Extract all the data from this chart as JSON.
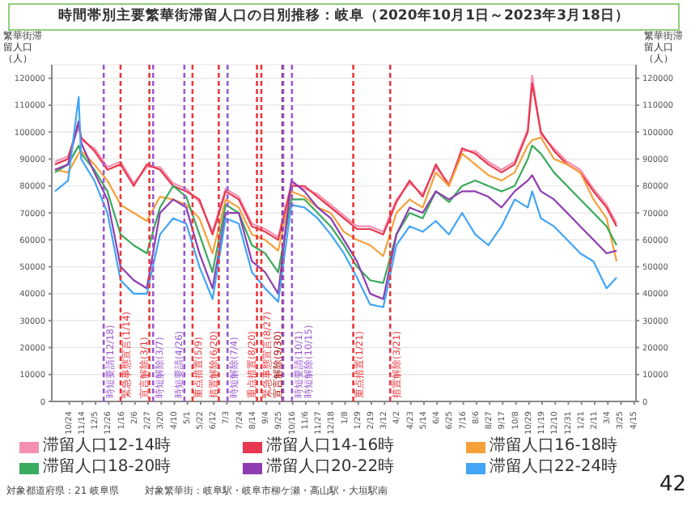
{
  "chart_data": {
    "type": "line",
    "title": "時間帯別主要繁華街滞留人口の日別推移：岐阜（2020年10月1日～2023年3月18日）",
    "ylabel": "繁華街滞留人口（人）",
    "y2label": "繁華街滞留人口（人）",
    "x": [
      "2020-10-01",
      "2020-10-22",
      "2020-11-08",
      "2020-11-12",
      "2020-12-03",
      "2020-12-24",
      "2021-01-14",
      "2021-02-04",
      "2021-02-25",
      "2021-03-18",
      "2021-04-08",
      "2021-04-29",
      "2021-05-20",
      "2021-06-10",
      "2021-07-01",
      "2021-07-22",
      "2021-08-12",
      "2021-09-02",
      "2021-09-23",
      "2021-10-14",
      "2021-11-04",
      "2021-11-25",
      "2021-12-16",
      "2022-01-06",
      "2022-01-27",
      "2022-02-17",
      "2022-03-10",
      "2022-03-31",
      "2022-04-21",
      "2022-05-12",
      "2022-06-02",
      "2022-06-23",
      "2022-07-14",
      "2022-08-04",
      "2022-08-25",
      "2022-09-15",
      "2022-10-06",
      "2022-10-27",
      "2022-11-03",
      "2022-11-17",
      "2022-12-08",
      "2022-12-29",
      "2023-01-19",
      "2023-02-09",
      "2023-03-02",
      "2023-03-18"
    ],
    "series": [
      {
        "name": "滞留人口12-14時",
        "color": "#f48fb1",
        "values": [
          89000,
          91000,
          102000,
          97000,
          94000,
          87000,
          89000,
          81000,
          87000,
          87000,
          81000,
          79000,
          74000,
          63000,
          79000,
          76000,
          66000,
          64000,
          61000,
          81000,
          79000,
          77000,
          73000,
          69000,
          65000,
          65000,
          63000,
          75000,
          81000,
          77000,
          87000,
          81000,
          93000,
          93000,
          89000,
          86000,
          89000,
          101000,
          121000,
          99000,
          94000,
          89000,
          86000,
          79000,
          73000,
          66000
        ]
      },
      {
        "name": "滞留人口14-16時",
        "color": "#e8384f",
        "values": [
          88000,
          90000,
          104000,
          98000,
          93000,
          86000,
          88000,
          80000,
          88000,
          86000,
          80000,
          78000,
          75000,
          62000,
          78000,
          75000,
          65000,
          63000,
          60000,
          80000,
          80000,
          76000,
          72000,
          68000,
          64000,
          64000,
          62000,
          74000,
          82000,
          76000,
          88000,
          80000,
          94000,
          92000,
          88000,
          85000,
          88000,
          100000,
          118000,
          100000,
          93000,
          88000,
          85000,
          78000,
          72000,
          65000
        ]
      },
      {
        "name": "滞留人口16-18時",
        "color": "#f5a03a",
        "values": [
          86000,
          85000,
          92000,
          93000,
          88000,
          82000,
          73000,
          70000,
          67000,
          76000,
          75000,
          73000,
          68000,
          55000,
          75000,
          72000,
          62000,
          60000,
          56000,
          78000,
          76000,
          72000,
          70000,
          63000,
          60000,
          58000,
          54000,
          70000,
          75000,
          72000,
          85000,
          80000,
          92000,
          88000,
          84000,
          82000,
          85000,
          95000,
          97000,
          98000,
          90000,
          88000,
          85000,
          75000,
          68000,
          52000
        ]
      },
      {
        "name": "滞留人口18-20時",
        "color": "#3aaa5c",
        "values": [
          85000,
          88000,
          95000,
          92000,
          86000,
          78000,
          62000,
          58000,
          55000,
          72000,
          80000,
          76000,
          62000,
          48000,
          73000,
          70000,
          58000,
          55000,
          48000,
          75000,
          75000,
          70000,
          65000,
          58000,
          50000,
          45000,
          44000,
          62000,
          70000,
          68000,
          78000,
          74000,
          80000,
          82000,
          80000,
          78000,
          80000,
          90000,
          95000,
          92000,
          85000,
          80000,
          75000,
          70000,
          65000,
          58000
        ]
      },
      {
        "name": "滞留人口20-22時",
        "color": "#8e3cb0",
        "values": [
          86000,
          88000,
          104000,
          96000,
          85000,
          75000,
          50000,
          45000,
          42000,
          70000,
          75000,
          72000,
          55000,
          42000,
          70000,
          70000,
          52000,
          48000,
          40000,
          82000,
          78000,
          72000,
          68000,
          60000,
          52000,
          40000,
          38000,
          62000,
          72000,
          70000,
          78000,
          75000,
          78000,
          78000,
          76000,
          72000,
          78000,
          82000,
          84000,
          78000,
          75000,
          70000,
          65000,
          60000,
          55000,
          56000
        ]
      },
      {
        "name": "滞留人口22-24時",
        "color": "#42a5f5",
        "values": [
          78000,
          82000,
          113000,
          90000,
          82000,
          70000,
          45000,
          40000,
          40000,
          62000,
          68000,
          66000,
          50000,
          38000,
          68000,
          66000,
          48000,
          42000,
          37000,
          73000,
          72000,
          68000,
          62000,
          55000,
          46000,
          36000,
          35000,
          58000,
          65000,
          63000,
          67000,
          62000,
          70000,
          62000,
          58000,
          65000,
          75000,
          72000,
          78000,
          68000,
          65000,
          60000,
          55000,
          52000,
          42000,
          46000
        ]
      }
    ],
    "xlim": [
      "2020-09-26",
      "2023-04-18"
    ],
    "xticks": [
      {
        "value": "2020-10-24",
        "label": "10/24"
      },
      {
        "value": "2020-11-14",
        "label": "11/14"
      },
      {
        "value": "2020-12-05",
        "label": "12/5"
      },
      {
        "value": "2020-12-26",
        "label": "12/26"
      },
      {
        "value": "2021-01-16",
        "label": "1/16"
      },
      {
        "value": "2021-02-06",
        "label": "2/6"
      },
      {
        "value": "2021-02-27",
        "label": "2/27"
      },
      {
        "value": "2021-03-20",
        "label": "3/20"
      },
      {
        "value": "2021-04-10",
        "label": "4/10"
      },
      {
        "value": "2021-05-01",
        "label": "5/1"
      },
      {
        "value": "2021-05-22",
        "label": "5/22"
      },
      {
        "value": "2021-06-12",
        "label": "6/12"
      },
      {
        "value": "2021-07-03",
        "label": "7/3"
      },
      {
        "value": "2021-07-24",
        "label": "7/24"
      },
      {
        "value": "2021-08-14",
        "label": "8/14"
      },
      {
        "value": "2021-09-04",
        "label": "9/4"
      },
      {
        "value": "2021-09-25",
        "label": "9/25"
      },
      {
        "value": "2021-10-16",
        "label": "10/16"
      },
      {
        "value": "2021-11-06",
        "label": "11/6"
      },
      {
        "value": "2021-11-27",
        "label": "11/27"
      },
      {
        "value": "2021-12-18",
        "label": "12/18"
      },
      {
        "value": "2022-01-08",
        "label": "1/8"
      },
      {
        "value": "2022-01-29",
        "label": "1/29"
      },
      {
        "value": "2022-02-19",
        "label": "2/19"
      },
      {
        "value": "2022-03-12",
        "label": "3/12"
      },
      {
        "value": "2022-04-02",
        "label": "4/2"
      },
      {
        "value": "2022-04-23",
        "label": "4/23"
      },
      {
        "value": "2022-05-14",
        "label": "5/14"
      },
      {
        "value": "2022-06-04",
        "label": "6/4"
      },
      {
        "value": "2022-06-25",
        "label": "6/25"
      },
      {
        "value": "2022-07-16",
        "label": "7/16"
      },
      {
        "value": "2022-08-06",
        "label": "8/6"
      },
      {
        "value": "2022-08-27",
        "label": "8/27"
      },
      {
        "value": "2022-09-17",
        "label": "9/17"
      },
      {
        "value": "2022-10-08",
        "label": "10/8"
      },
      {
        "value": "2022-10-29",
        "label": "10/29"
      },
      {
        "value": "2022-11-19",
        "label": "11/19"
      },
      {
        "value": "2022-12-10",
        "label": "12/10"
      },
      {
        "value": "2022-12-31",
        "label": "12/31"
      },
      {
        "value": "2023-01-21",
        "label": "1/21"
      },
      {
        "value": "2023-02-11",
        "label": "2/11"
      },
      {
        "value": "2023-03-04",
        "label": "3/4"
      },
      {
        "value": "2023-03-25",
        "label": "3/25"
      },
      {
        "value": "2023-04-15",
        "label": "4/15"
      }
    ],
    "ylim": [
      0,
      125000
    ],
    "yticks": [
      0,
      10000,
      20000,
      30000,
      40000,
      50000,
      60000,
      70000,
      80000,
      90000,
      100000,
      110000,
      120000
    ],
    "y2lim": [
      0,
      125000
    ],
    "y2ticks": [
      0,
      10000,
      20000,
      30000,
      40000,
      50000,
      60000,
      70000,
      80000,
      90000,
      100000,
      110000,
      120000
    ],
    "grid": "y",
    "legend": "bottom",
    "marker": "none",
    "line_style": "solid",
    "ref_lines": [
      {
        "axis": "x",
        "value": "2020-12-18",
        "label": "時短要請(12/18)",
        "color": "#9b59d0",
        "line_style": "dashed"
      },
      {
        "axis": "x",
        "value": "2021-01-14",
        "label": "緊急事態宣言(1/14)",
        "color": "#e8383d",
        "line_style": "dashed"
      },
      {
        "axis": "x",
        "value": "2021-03-01",
        "label": "宣言解除(3/1)",
        "color": "#e8383d",
        "line_style": "dashed"
      },
      {
        "axis": "x",
        "value": "2021-03-07",
        "label": "時短解除(3/7)",
        "color": "#9b59d0",
        "line_style": "dashed"
      },
      {
        "axis": "x",
        "value": "2021-04-26",
        "label": "時短要請(4/26)",
        "color": "#9b59d0",
        "line_style": "dashed"
      },
      {
        "axis": "x",
        "value": "2021-05-09",
        "label": "重点措置(5/9)",
        "color": "#e8383d",
        "line_style": "dashed"
      },
      {
        "axis": "x",
        "value": "2021-06-20",
        "label": "措置解除(6/20)",
        "color": "#e8383d",
        "line_style": "dashed"
      },
      {
        "axis": "x",
        "value": "2021-07-04",
        "label": "時短解除(7/4)",
        "color": "#9b59d0",
        "line_style": "dashed"
      },
      {
        "axis": "x",
        "value": "2021-08-20",
        "label": "重点措置(8/20)",
        "color": "#e8383d",
        "line_style": "dashed"
      },
      {
        "axis": "x",
        "value": "2021-08-27",
        "label": "緊急事態宣言(8/27)",
        "color": "#e8383d",
        "line_style": "dashed"
      },
      {
        "axis": "x",
        "value": "2021-09-30",
        "label": "宣言解除(9/30)",
        "color": "#a00000",
        "line_style": "dashed"
      },
      {
        "axis": "x",
        "value": "2021-10-01",
        "label": "時短要請(10/1)",
        "color": "#9b59d0",
        "line_style": "dashed"
      },
      {
        "axis": "x",
        "value": "2021-10-15",
        "label": "時短解除(10/15)",
        "color": "#9b59d0",
        "line_style": "dashed"
      },
      {
        "axis": "x",
        "value": "2022-01-21",
        "label": "重点措置(1/21)",
        "color": "#e8383d",
        "line_style": "dashed"
      },
      {
        "axis": "x",
        "value": "2022-03-21",
        "label": "措置解除(3/21)",
        "color": "#e8383d",
        "line_style": "dashed"
      }
    ],
    "annotations": [
      "対象都道府県：21 岐阜県",
      "対象繁華街：岐阜駅・岐阜市柳ケ瀬・高山駅・大垣駅南",
      "42"
    ]
  }
}
